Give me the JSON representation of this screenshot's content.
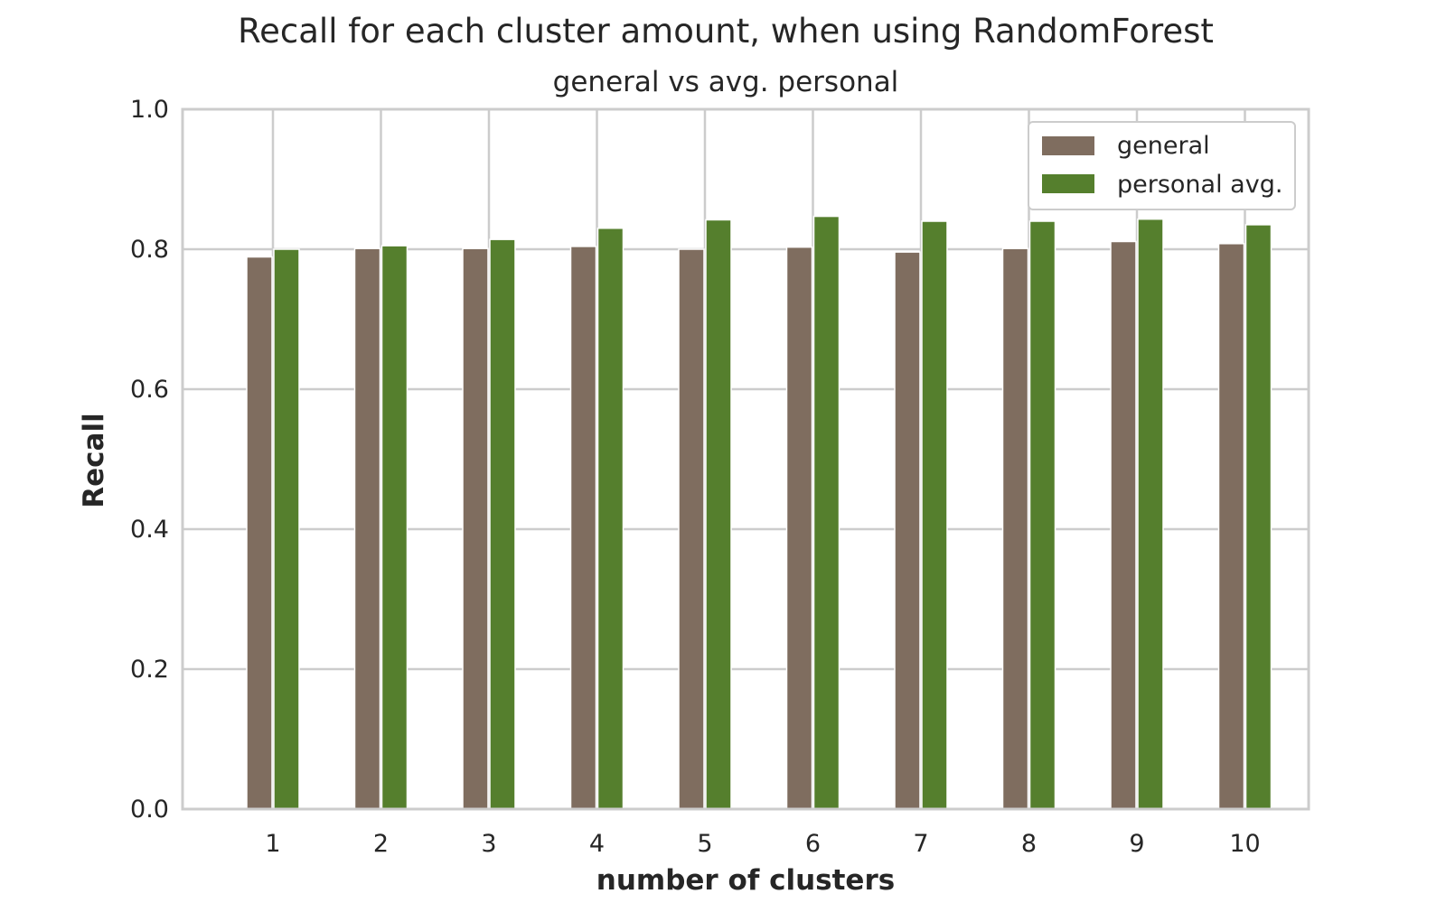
{
  "chart_data": {
    "type": "bar",
    "title": "Recall for each cluster amount, when using RandomForest",
    "subtitle": "general vs avg. personal",
    "xlabel": "number of clusters",
    "ylabel": "Recall",
    "categories": [
      "1",
      "2",
      "3",
      "4",
      "5",
      "6",
      "7",
      "8",
      "9",
      "10"
    ],
    "ylim": [
      0.0,
      1.0
    ],
    "yticks": [
      "0.0",
      "0.2",
      "0.4",
      "0.6",
      "0.8",
      "1.0"
    ],
    "grid": true,
    "legend_position": "top-right",
    "series": [
      {
        "name": "general",
        "color": "#7f6d5f",
        "values": [
          0.789,
          0.801,
          0.801,
          0.804,
          0.8,
          0.803,
          0.796,
          0.801,
          0.811,
          0.808
        ]
      },
      {
        "name": "personal avg.",
        "color": "#557f2d",
        "values": [
          0.8,
          0.805,
          0.814,
          0.83,
          0.842,
          0.847,
          0.84,
          0.84,
          0.843,
          0.835
        ]
      }
    ]
  }
}
